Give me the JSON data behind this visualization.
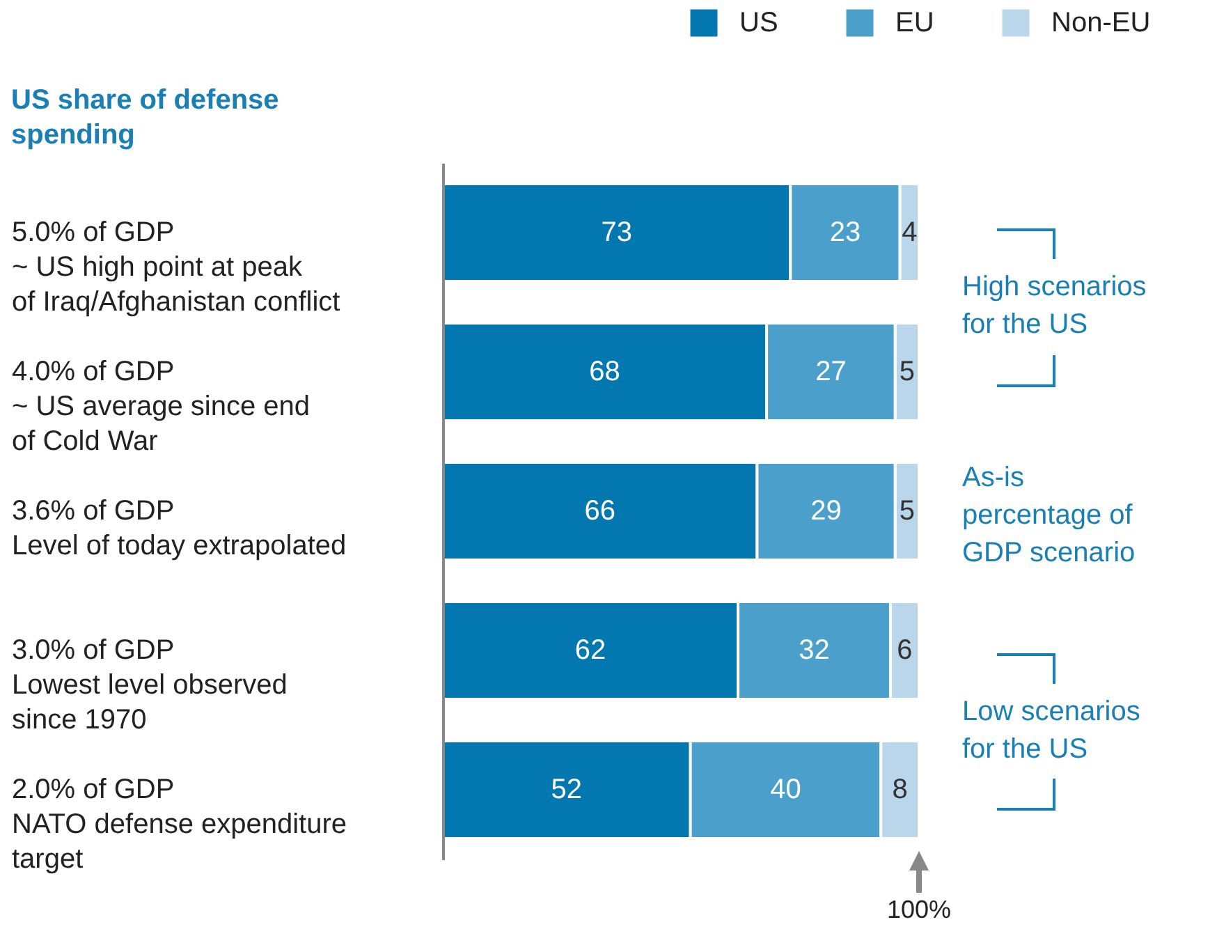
{
  "chart_data": {
    "type": "bar",
    "orientation": "horizontal",
    "stacked": true,
    "title": "US share of defense spending",
    "categories": [
      "5.0% of GDP\n~ US high point at peak\nof Iraq/Afghanistan conflict",
      "4.0% of GDP\n~ US average since end\nof Cold War",
      "3.6% of GDP\nLevel of today extrapolated",
      "3.0% of GDP\nLowest level observed\nsince 1970",
      "2.0% of GDP\nNATO defense expenditure\ntarget"
    ],
    "series": [
      {
        "name": "US",
        "color": "#0277b0",
        "values": [
          73,
          68,
          66,
          62,
          52
        ]
      },
      {
        "name": "EU",
        "color": "#4aa0cb",
        "values": [
          23,
          27,
          29,
          32,
          40
        ]
      },
      {
        "name": "Non-EU",
        "color": "#bad6ea",
        "values": [
          4,
          5,
          5,
          6,
          8
        ]
      }
    ],
    "xlim": [
      0,
      100
    ],
    "data_labels": true,
    "legend": "top right",
    "annotations": [
      "High scenarios\nfor the US",
      "As-is\npercentage of\nGDP scenario",
      "Low scenarios\nfor the US",
      "100%"
    ]
  }
}
